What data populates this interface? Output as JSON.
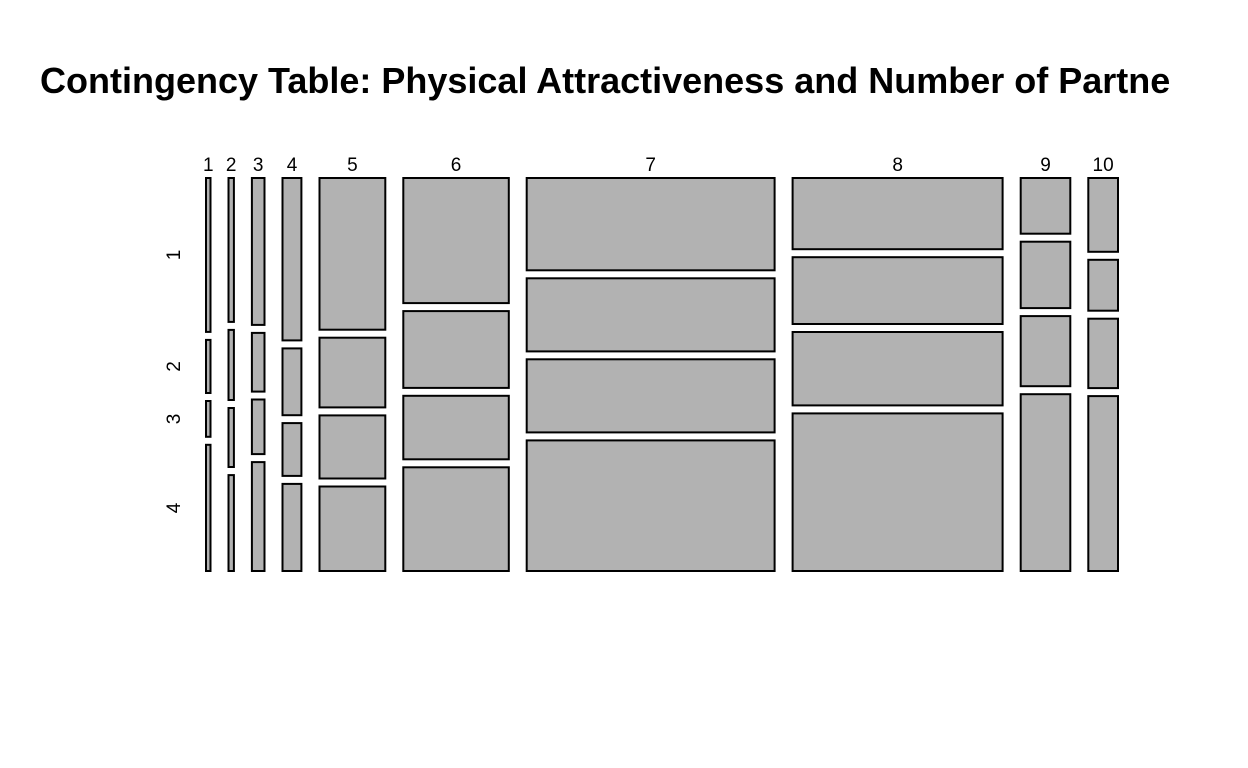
{
  "chart_data": {
    "type": "mosaic",
    "title": "Contingency Table: Physical Attractiveness and Number of Partne",
    "column_labels": [
      "1",
      "2",
      "3",
      "4",
      "5",
      "6",
      "7",
      "8",
      "9",
      "10"
    ],
    "row_labels": [
      "1",
      "2",
      "3",
      "4"
    ],
    "column_proportions": [
      0.005,
      0.006,
      0.014,
      0.021,
      0.073,
      0.117,
      0.275,
      0.233,
      0.055,
      0.033
    ],
    "cell_proportions": [
      [
        0.417,
        0.144,
        0.097,
        0.342
      ],
      [
        0.39,
        0.19,
        0.16,
        0.26
      ],
      [
        0.398,
        0.159,
        0.148,
        0.295
      ],
      [
        0.44,
        0.181,
        0.143,
        0.236
      ],
      [
        0.411,
        0.189,
        0.171,
        0.229
      ],
      [
        0.339,
        0.208,
        0.172,
        0.281
      ],
      [
        0.25,
        0.198,
        0.198,
        0.354
      ],
      [
        0.193,
        0.181,
        0.199,
        0.427
      ],
      [
        0.151,
        0.18,
        0.19,
        0.479
      ],
      [
        0.2,
        0.138,
        0.188,
        0.474
      ]
    ],
    "fill_color": "#b2b2b2",
    "border_color": "#000000"
  }
}
